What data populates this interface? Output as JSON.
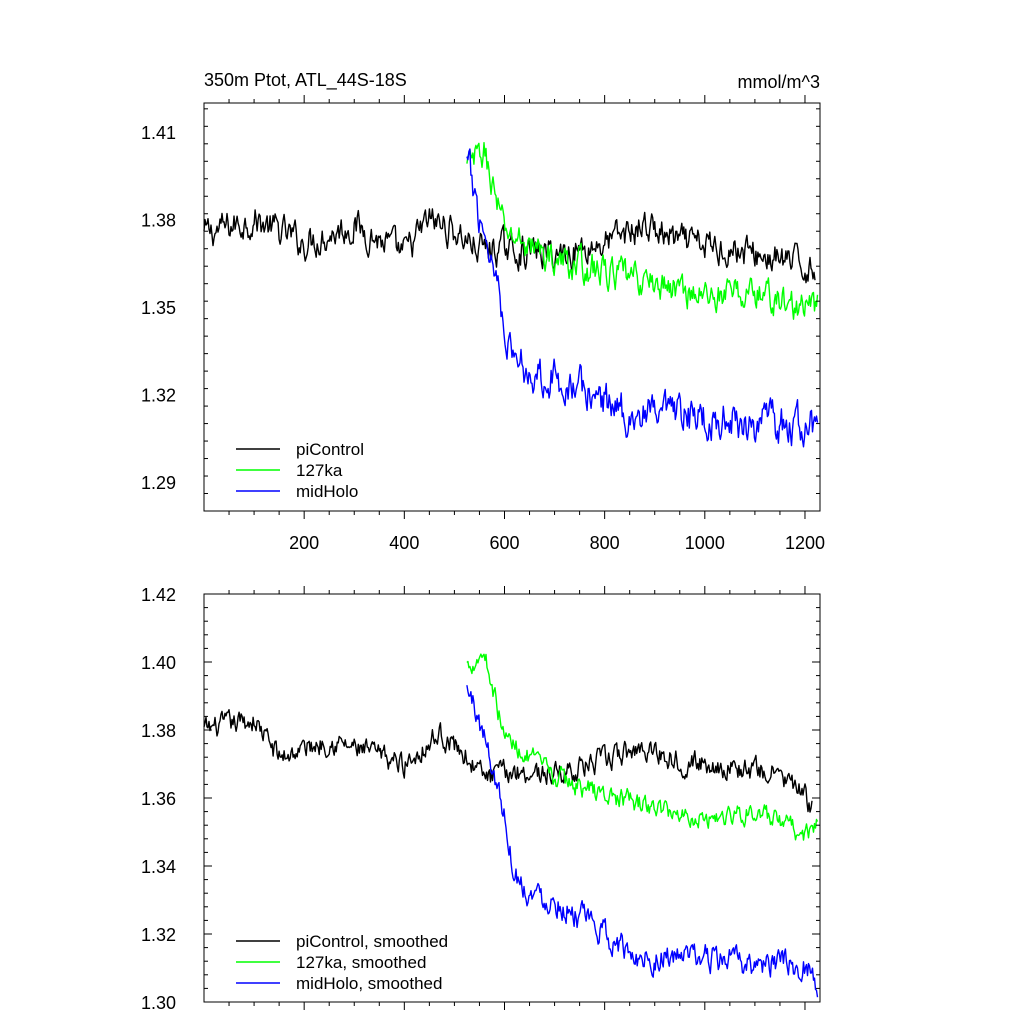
{
  "chart_data": [
    {
      "type": "line",
      "title": "350m Ptot, ATL_44S-18S",
      "units": "mmol/m^3",
      "xlim": [
        0,
        1230
      ],
      "ylim": [
        1.28,
        1.42
      ],
      "x_ticks": [
        200,
        400,
        600,
        800,
        1000,
        1200
      ],
      "x_tick_labels": [
        "200",
        "400",
        "600",
        "800",
        "1000",
        "1200"
      ],
      "y_ticks": [
        1.29,
        1.32,
        1.35,
        1.38,
        1.41
      ],
      "y_tick_labels": [
        "1.29",
        "1.32",
        "1.35",
        "1.38",
        "1.41"
      ],
      "legend": [
        {
          "name": "piControl",
          "color": "#000000"
        },
        {
          "name": "127ka",
          "color": "#00ff00"
        },
        {
          "name": "midHolo",
          "color": "#0000ff"
        }
      ],
      "legend_position": "bottom-left",
      "series": [
        {
          "name": "piControl",
          "color": "#000000",
          "x_start": 0,
          "x_end": 1220,
          "noise": 0.0045,
          "anchors": [
            [
              0,
              1.375
            ],
            [
              100,
              1.38
            ],
            [
              200,
              1.372
            ],
            [
              300,
              1.378
            ],
            [
              400,
              1.368
            ],
            [
              450,
              1.38
            ],
            [
              500,
              1.376
            ],
            [
              550,
              1.37
            ],
            [
              600,
              1.37
            ],
            [
              700,
              1.368
            ],
            [
              800,
              1.372
            ],
            [
              880,
              1.378
            ],
            [
              950,
              1.372
            ],
            [
              1050,
              1.37
            ],
            [
              1150,
              1.366
            ],
            [
              1220,
              1.363
            ]
          ]
        },
        {
          "name": "127ka",
          "color": "#00ff00",
          "x_start": 525,
          "x_end": 1225,
          "noise": 0.0045,
          "anchors": [
            [
              525,
              1.398
            ],
            [
              560,
              1.403
            ],
            [
              600,
              1.376
            ],
            [
              650,
              1.371
            ],
            [
              700,
              1.366
            ],
            [
              800,
              1.362
            ],
            [
              900,
              1.358
            ],
            [
              1000,
              1.354
            ],
            [
              1100,
              1.355
            ],
            [
              1200,
              1.349
            ],
            [
              1225,
              1.35
            ]
          ]
        },
        {
          "name": "midHolo",
          "color": "#0000ff",
          "x_start": 525,
          "x_end": 1225,
          "noise": 0.0055,
          "anchors": [
            [
              525,
              1.4
            ],
            [
              545,
              1.385
            ],
            [
              570,
              1.37
            ],
            [
              590,
              1.356
            ],
            [
              610,
              1.335
            ],
            [
              650,
              1.328
            ],
            [
              700,
              1.326
            ],
            [
              750,
              1.322
            ],
            [
              800,
              1.318
            ],
            [
              850,
              1.313
            ],
            [
              900,
              1.312
            ],
            [
              1000,
              1.312
            ],
            [
              1100,
              1.31
            ],
            [
              1200,
              1.309
            ],
            [
              1225,
              1.308
            ]
          ]
        }
      ]
    },
    {
      "type": "line",
      "title": "",
      "xlim": [
        0,
        1230
      ],
      "ylim": [
        1.3,
        1.42
      ],
      "x_ticks": [
        200,
        400,
        600,
        800,
        1000,
        1200
      ],
      "x_tick_labels": [],
      "y_ticks": [
        1.3,
        1.32,
        1.34,
        1.36,
        1.38,
        1.4,
        1.42
      ],
      "y_tick_labels": [
        "1.30",
        "1.32",
        "1.34",
        "1.36",
        "1.38",
        "1.40",
        "1.42"
      ],
      "legend": [
        {
          "name": "piControl, smoothed",
          "color": "#000000"
        },
        {
          "name": "127ka, smoothed",
          "color": "#00ff00"
        },
        {
          "name": "midHolo, smoothed",
          "color": "#0000ff"
        }
      ],
      "legend_position": "bottom-left",
      "series": [
        {
          "name": "piControl, smoothed",
          "color": "#000000",
          "x_start": 0,
          "x_end": 1215,
          "noise": 0.0028,
          "anchors": [
            [
              0,
              1.38
            ],
            [
              100,
              1.383
            ],
            [
              150,
              1.372
            ],
            [
              250,
              1.377
            ],
            [
              400,
              1.37
            ],
            [
              470,
              1.379
            ],
            [
              520,
              1.373
            ],
            [
              560,
              1.366
            ],
            [
              620,
              1.368
            ],
            [
              700,
              1.367
            ],
            [
              800,
              1.371
            ],
            [
              880,
              1.375
            ],
            [
              950,
              1.371
            ],
            [
              1050,
              1.369
            ],
            [
              1150,
              1.367
            ],
            [
              1215,
              1.358
            ]
          ]
        },
        {
          "name": "127ka, smoothed",
          "color": "#00ff00",
          "x_start": 525,
          "x_end": 1225,
          "noise": 0.0025,
          "anchors": [
            [
              525,
              1.399
            ],
            [
              560,
              1.403
            ],
            [
              600,
              1.378
            ],
            [
              650,
              1.372
            ],
            [
              700,
              1.366
            ],
            [
              800,
              1.361
            ],
            [
              900,
              1.357
            ],
            [
              1000,
              1.354
            ],
            [
              1100,
              1.356
            ],
            [
              1200,
              1.349
            ],
            [
              1225,
              1.352
            ]
          ]
        },
        {
          "name": "midHolo, smoothed",
          "color": "#0000ff",
          "x_start": 525,
          "x_end": 1225,
          "noise": 0.0032,
          "anchors": [
            [
              525,
              1.392
            ],
            [
              545,
              1.385
            ],
            [
              575,
              1.37
            ],
            [
              600,
              1.355
            ],
            [
              620,
              1.338
            ],
            [
              650,
              1.332
            ],
            [
              700,
              1.33
            ],
            [
              750,
              1.325
            ],
            [
              800,
              1.32
            ],
            [
              850,
              1.314
            ],
            [
              900,
              1.313
            ],
            [
              1000,
              1.313
            ],
            [
              1100,
              1.311
            ],
            [
              1200,
              1.311
            ],
            [
              1225,
              1.306
            ]
          ]
        }
      ]
    }
  ]
}
